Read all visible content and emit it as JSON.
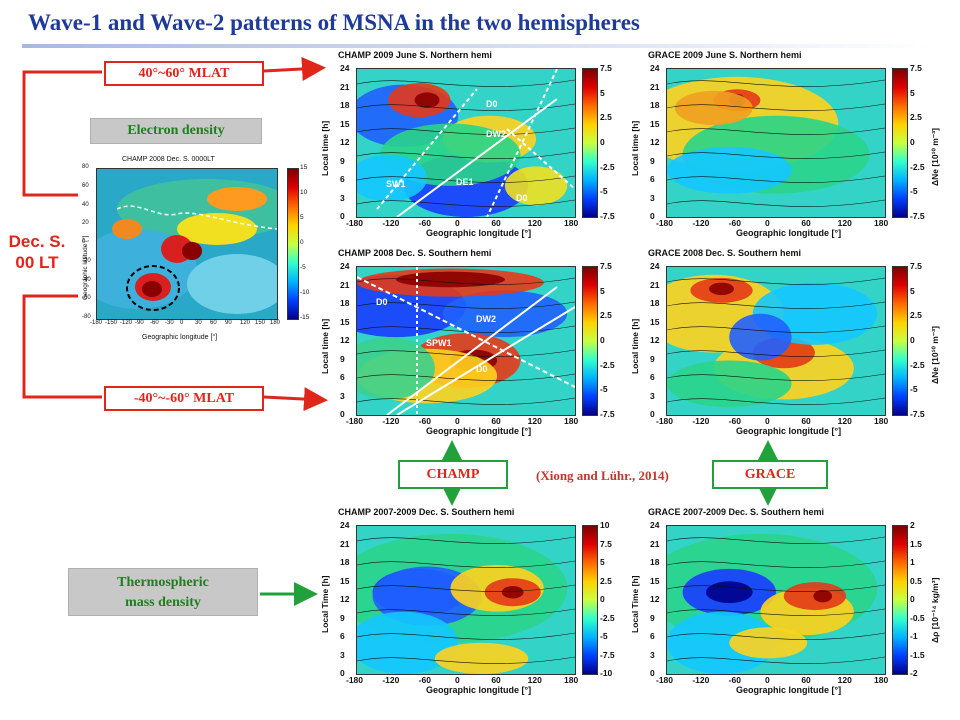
{
  "title": "Wave-1 and Wave-2 patterns of MSNA in the two hemispheres",
  "labels": {
    "mlat_north": "40°~60° MLAT",
    "mlat_south": "-40°~-60° MLAT",
    "electron_density": "Electron density",
    "dec_s": "Dec. S.",
    "dec_lt": "00 LT",
    "thermo_line1": "Thermospheric",
    "thermo_line2": "mass density",
    "champ": "CHAMP",
    "grace": "GRACE",
    "citation": "(Xiong and Lühr., 2014)"
  },
  "map": {
    "title": "CHAMP  2008  Dec. S.  0000LT",
    "ylabel": "Geographic latitude [°]",
    "xlabel": "Geographic longitude [°]",
    "yticks": [
      "80",
      "60",
      "40",
      "20",
      "0",
      "-20",
      "-40",
      "-60",
      "-80"
    ],
    "xticks": [
      "-180",
      "-150",
      "-120",
      "-90",
      "-60",
      "-30",
      "0",
      "30",
      "60",
      "90",
      "120",
      "150",
      "180"
    ],
    "cticks": [
      "15",
      "10",
      "5",
      "0",
      "-5",
      "-10",
      "-15"
    ]
  },
  "panels": {
    "p1": {
      "title": "CHAMP  2009  June S.  Northern hemi",
      "ylabel": "Local time [h]",
      "xlabel": "Geographic longitude [°]",
      "cbar_unit": "",
      "cticks": [
        "7.5",
        "5",
        "2.5",
        "0",
        "-2.5",
        "-5",
        "-7.5"
      ]
    },
    "p2": {
      "title": "GRACE  2009  June S.  Northern hemi",
      "ylabel": "Local time [h]",
      "xlabel": "Geographic longitude [°]",
      "cbar_unit": "ΔNe [10¹⁰ m⁻³]",
      "cticks": [
        "7.5",
        "5",
        "2.5",
        "0",
        "-2.5",
        "-5",
        "-7.5"
      ]
    },
    "p3": {
      "title": "CHAMP  2008  Dec. S.  Southern hemi",
      "ylabel": "Local time [h]",
      "xlabel": "Geographic longitude [°]",
      "cbar_unit": "",
      "cticks": [
        "7.5",
        "5",
        "2.5",
        "0",
        "-2.5",
        "-5",
        "-7.5"
      ]
    },
    "p4": {
      "title": "GRACE  2008  Dec. S.  Southern hemi",
      "ylabel": "Local time [h]",
      "xlabel": "Geographic longitude [°]",
      "cbar_unit": "ΔNe [10¹⁰ m⁻³]",
      "cticks": [
        "7.5",
        "5",
        "2.5",
        "0",
        "-2.5",
        "-5",
        "-7.5"
      ]
    },
    "p5": {
      "title": "CHAMP  2007-2009  Dec. S.  Southern hemi",
      "ylabel": "Local Time [h]",
      "xlabel": "Geographic longitude [°]",
      "cbar_unit": "",
      "cticks": [
        "10",
        "7.5",
        "5",
        "2.5",
        "0",
        "-2.5",
        "-5",
        "-7.5",
        "-10"
      ]
    },
    "p6": {
      "title": "GRACE  2007-2009  Dec. S.  Southern hemi",
      "ylabel": "Local Time [h]",
      "xlabel": "Geographic longitude [°]",
      "cbar_unit": "Δρ [10⁻¹⁴ kg/m³]",
      "cticks": [
        "2",
        "1.5",
        "1",
        "0.5",
        "0",
        "-0.5",
        "-1",
        "-1.5",
        "-2"
      ]
    }
  },
  "lt_ticks": [
    "24",
    "21",
    "18",
    "15",
    "12",
    "9",
    "6",
    "3",
    "0"
  ],
  "lon_ticks": [
    "-180",
    "-120",
    "-60",
    "0",
    "60",
    "120",
    "180"
  ],
  "wave_labels": {
    "p1": [
      "D0",
      "DW2",
      "DE1",
      "SW1",
      "D0"
    ],
    "p3": [
      "D0",
      "SPW1",
      "DW2",
      "D0"
    ]
  },
  "colors": {
    "red": "#e0251b",
    "green": "#22a03c",
    "title_blue": "#1f3a99"
  }
}
